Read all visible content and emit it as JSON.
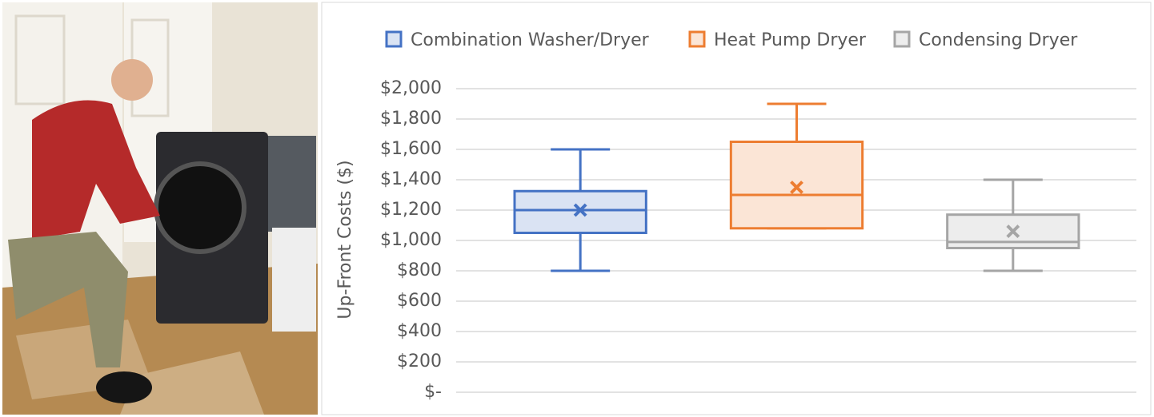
{
  "chart_data": {
    "type": "box",
    "y_label": "Up-Front Costs ($)",
    "ylim": [
      0,
      2000
    ],
    "yticks": [
      {
        "value": 0,
        "label": "$-"
      },
      {
        "value": 200,
        "label": "$200"
      },
      {
        "value": 400,
        "label": "$400"
      },
      {
        "value": 600,
        "label": "$600"
      },
      {
        "value": 800,
        "label": "$800"
      },
      {
        "value": 1000,
        "label": "$1,000"
      },
      {
        "value": 1200,
        "label": "$1,200"
      },
      {
        "value": 1400,
        "label": "$1,400"
      },
      {
        "value": 1600,
        "label": "$1,600"
      },
      {
        "value": 1800,
        "label": "$1,800"
      },
      {
        "value": 2000,
        "label": "$2,000"
      }
    ],
    "grid": true,
    "legend": "top",
    "series": [
      {
        "name": "Combination Washer/Dryer",
        "color": "#4472c4",
        "fill": "#dae3f3",
        "min": 800,
        "q1": 1050,
        "median": 1200,
        "q3": 1325,
        "max": 1600,
        "mean": 1200
      },
      {
        "name": "Heat Pump Dryer",
        "color": "#ed7d31",
        "fill": "#fbe5d6",
        "min": 1080,
        "q1": 1080,
        "median": 1300,
        "q3": 1650,
        "max": 1900,
        "mean": 1350
      },
      {
        "name": "Condensing Dryer",
        "color": "#a5a5a5",
        "fill": "#ededed",
        "min": 800,
        "q1": 950,
        "median": 990,
        "q3": 1170,
        "max": 1400,
        "mean": 1060
      }
    ]
  }
}
